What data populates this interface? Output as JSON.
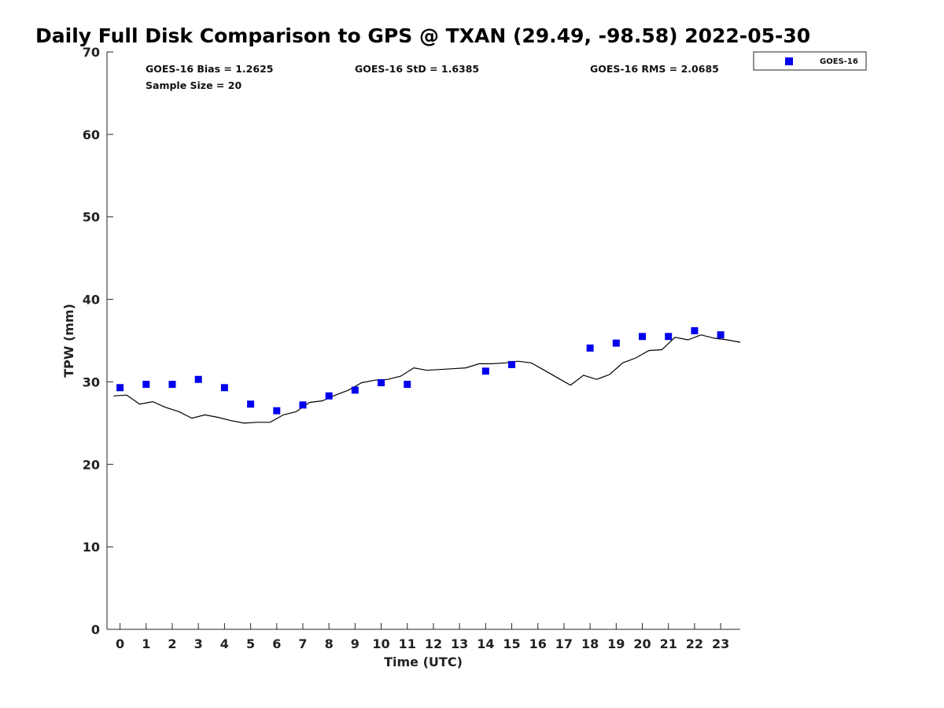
{
  "chart_data": {
    "type": "scatter",
    "title": "Daily Full Disk Comparison to GPS @ TXAN (29.49, -98.58) 2022-05-30",
    "xlabel": "Time (UTC)",
    "ylabel": "TPW (mm)",
    "xlim": [
      -0.5,
      23.75
    ],
    "ylim": [
      0,
      70
    ],
    "x_ticks": [
      "0",
      "1",
      "2",
      "3",
      "4",
      "5",
      "6",
      "7",
      "8",
      "9",
      "10",
      "11",
      "12",
      "13",
      "14",
      "15",
      "16",
      "17",
      "18",
      "19",
      "20",
      "21",
      "22",
      "23"
    ],
    "y_ticks": [
      "0",
      "10",
      "20",
      "30",
      "40",
      "50",
      "60",
      "70"
    ],
    "grid": false,
    "legend_position": "top-right (outside)",
    "stats": {
      "bias": "GOES-16 Bias = 1.2625",
      "std": "GOES-16 StD = 1.6385",
      "rms": "GOES-16 RMS = 2.0685",
      "sample": "Sample Size = 20"
    },
    "series": [
      {
        "name": "GOES-16",
        "kind": "points",
        "color": "#0000ee",
        "marker": "square",
        "points": [
          [
            0,
            29.3
          ],
          [
            1,
            29.7
          ],
          [
            2,
            29.7
          ],
          [
            3,
            30.3
          ],
          [
            4,
            29.3
          ],
          [
            5,
            27.3
          ],
          [
            6,
            26.5
          ],
          [
            7,
            27.2
          ],
          [
            8,
            28.3
          ],
          [
            9,
            29.0
          ],
          [
            10,
            29.9
          ],
          [
            11,
            29.7
          ],
          [
            14,
            31.3
          ],
          [
            15,
            32.1
          ],
          [
            18,
            34.1
          ],
          [
            19,
            34.7
          ],
          [
            20,
            35.5
          ],
          [
            21,
            35.5
          ],
          [
            22,
            36.2
          ],
          [
            23,
            35.7
          ]
        ]
      },
      {
        "kind": "line",
        "color": "#000000",
        "points": [
          [
            -0.25,
            28.3
          ],
          [
            0.25,
            28.4
          ],
          [
            0.75,
            27.3
          ],
          [
            1.25,
            27.6
          ],
          [
            1.75,
            26.9
          ],
          [
            2.25,
            26.4
          ],
          [
            2.75,
            25.6
          ],
          [
            3.25,
            26.0
          ],
          [
            3.75,
            25.7
          ],
          [
            4.25,
            25.3
          ],
          [
            4.75,
            25.0
          ],
          [
            5.25,
            25.1
          ],
          [
            5.75,
            25.1
          ],
          [
            6.25,
            26.0
          ],
          [
            6.75,
            26.4
          ],
          [
            7.25,
            27.5
          ],
          [
            7.75,
            27.7
          ],
          [
            8.25,
            28.4
          ],
          [
            8.75,
            29.0
          ],
          [
            9.25,
            29.9
          ],
          [
            9.75,
            30.2
          ],
          [
            10.25,
            30.3
          ],
          [
            10.75,
            30.7
          ],
          [
            11.25,
            31.7
          ],
          [
            11.75,
            31.4
          ],
          [
            12.25,
            31.5
          ],
          [
            12.75,
            31.6
          ],
          [
            13.25,
            31.7
          ],
          [
            13.75,
            32.2
          ],
          [
            14.25,
            32.2
          ],
          [
            14.75,
            32.3
          ],
          [
            15.25,
            32.5
          ],
          [
            15.75,
            32.3
          ],
          [
            16.25,
            31.4
          ],
          [
            16.75,
            30.5
          ],
          [
            17.25,
            29.6
          ],
          [
            17.75,
            30.8
          ],
          [
            18.25,
            30.3
          ],
          [
            18.75,
            30.9
          ],
          [
            19.25,
            32.3
          ],
          [
            19.75,
            32.9
          ],
          [
            20.25,
            33.8
          ],
          [
            20.75,
            33.9
          ],
          [
            21.25,
            35.4
          ],
          [
            21.75,
            35.1
          ],
          [
            22.25,
            35.7
          ],
          [
            22.75,
            35.3
          ],
          [
            23.25,
            35.1
          ],
          [
            23.75,
            34.8
          ]
        ]
      }
    ]
  }
}
